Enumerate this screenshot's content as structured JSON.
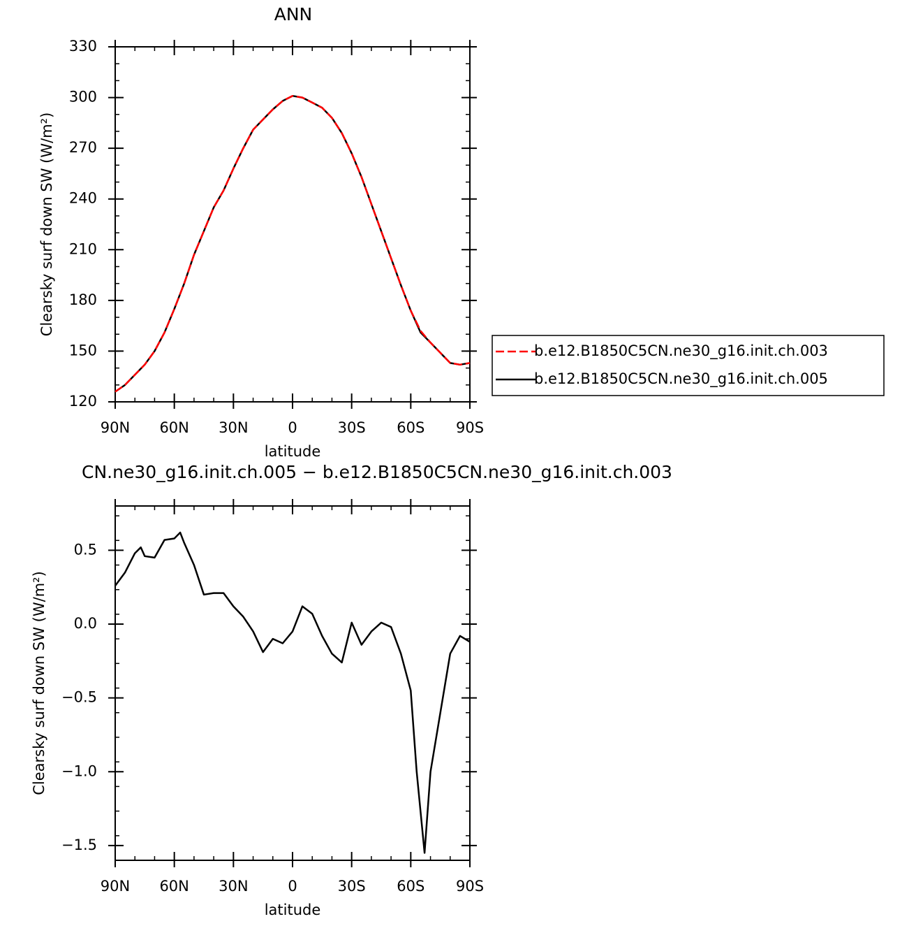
{
  "chart_data": [
    {
      "type": "line",
      "title": "ANN",
      "x_label": "latitude",
      "y_label": "Clearsky surf down SW (W/m²)",
      "x": [
        90,
        85,
        80,
        75,
        70,
        65,
        60,
        55,
        50,
        45,
        40,
        35,
        30,
        25,
        20,
        15,
        10,
        5,
        0,
        -5,
        -10,
        -15,
        -20,
        -25,
        -30,
        -35,
        -40,
        -45,
        -50,
        -55,
        -60,
        -65,
        -70,
        -75,
        -80,
        -85,
        -90
      ],
      "series": [
        {
          "name": "b.e12.B1850C5CN.ne30_g16.init.ch.003",
          "color": "#ff0000",
          "style": "dashed",
          "values": [
            126,
            130,
            136,
            142,
            150,
            161,
            175,
            190,
            207,
            221,
            235,
            245,
            258,
            270,
            281,
            287,
            293,
            298,
            301,
            300,
            297,
            294,
            288,
            279,
            267,
            253,
            237,
            221,
            205,
            189,
            174,
            162,
            155,
            149,
            143,
            142,
            143
          ]
        },
        {
          "name": "b.e12.B1850C5CN.ne30_g16.init.ch.005",
          "color": "#000000",
          "style": "solid",
          "values": [
            126,
            130,
            136,
            142,
            150,
            161,
            175,
            190,
            207,
            221,
            235,
            245,
            258,
            270,
            281,
            287,
            293,
            298,
            301,
            300,
            297,
            294,
            288,
            279,
            267,
            253,
            237,
            221,
            205,
            189,
            174,
            161,
            155,
            149,
            143,
            142,
            143
          ]
        }
      ],
      "xlim": [
        90,
        -90
      ],
      "xticks": [
        {
          "value": 90,
          "label": "90N"
        },
        {
          "value": 60,
          "label": "60N"
        },
        {
          "value": 30,
          "label": "30N"
        },
        0,
        {
          "value": -30,
          "label": "30S"
        },
        {
          "value": -60,
          "label": "60S"
        },
        {
          "value": -90,
          "label": "90S"
        }
      ],
      "ylim": [
        120,
        330
      ],
      "yticks": [
        120,
        150,
        180,
        210,
        240,
        270,
        300,
        330
      ],
      "legend": "right"
    },
    {
      "type": "line",
      "title": "CN.ne30_g16.init.ch.005 − b.e12.B1850C5CN.ne30_g16.init.ch.003",
      "x_label": "latitude",
      "y_label": "Clearsky surf down SW (W/m²)",
      "x": [
        90,
        85,
        80,
        77,
        75,
        70,
        65,
        60,
        57,
        55,
        50,
        45,
        40,
        35,
        30,
        25,
        20,
        15,
        10,
        5,
        0,
        -5,
        -10,
        -15,
        -20,
        -25,
        -30,
        -35,
        -40,
        -45,
        -50,
        -55,
        -60,
        -63,
        -67,
        -70,
        -75,
        -80,
        -85,
        -90
      ],
      "series": [
        {
          "color": "#000000",
          "style": "solid",
          "values": [
            0.26,
            0.35,
            0.48,
            0.52,
            0.46,
            0.45,
            0.57,
            0.58,
            0.62,
            0.55,
            0.4,
            0.2,
            0.21,
            0.21,
            0.12,
            0.05,
            -0.05,
            -0.19,
            -0.1,
            -0.13,
            -0.05,
            0.12,
            0.07,
            -0.08,
            -0.2,
            -0.26,
            0.01,
            -0.14,
            -0.05,
            0.01,
            -0.02,
            -0.2,
            -0.45,
            -1.0,
            -1.55,
            -1.0,
            -0.6,
            -0.2,
            -0.08,
            -0.12
          ]
        }
      ],
      "xlim": [
        90,
        -90
      ],
      "xticks": [
        {
          "value": 90,
          "label": "90N"
        },
        {
          "value": 60,
          "label": "60N"
        },
        {
          "value": 30,
          "label": "30N"
        },
        0,
        {
          "value": -30,
          "label": "30S"
        },
        {
          "value": -60,
          "label": "60S"
        },
        {
          "value": -90,
          "label": "90S"
        }
      ],
      "ylim": [
        -1.6,
        0.8
      ],
      "yticks": [
        {
          "value": -1.5,
          "label": "−1.5"
        },
        {
          "value": -1.0,
          "label": "−1.0"
        },
        {
          "value": -0.5,
          "label": "−0.5"
        },
        {
          "value": 0,
          "label": "0.0"
        },
        0.5
      ]
    }
  ]
}
